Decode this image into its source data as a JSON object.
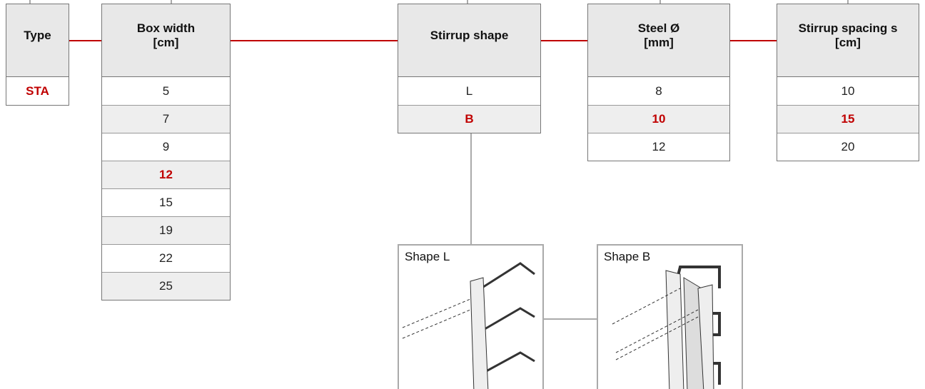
{
  "columns": [
    {
      "title": "Type",
      "options": [
        "STA"
      ],
      "selected": "STA"
    },
    {
      "title": "Box width",
      "unit": "[cm]",
      "options": [
        "5",
        "7",
        "9",
        "12",
        "15",
        "19",
        "22",
        "25"
      ],
      "selected": "12"
    },
    {
      "title": "Stirrup shape",
      "options": [
        "L",
        "B"
      ],
      "selected": "B"
    },
    {
      "title": "Steel Ø",
      "unit": "[mm]",
      "options": [
        "8",
        "10",
        "12"
      ],
      "selected": "10"
    },
    {
      "title": "Stirrup spacing s",
      "unit": "[cm]",
      "options": [
        "10",
        "15",
        "20"
      ],
      "selected": "15"
    }
  ],
  "images": [
    {
      "label": "Shape L"
    },
    {
      "label": "Shape B"
    }
  ]
}
